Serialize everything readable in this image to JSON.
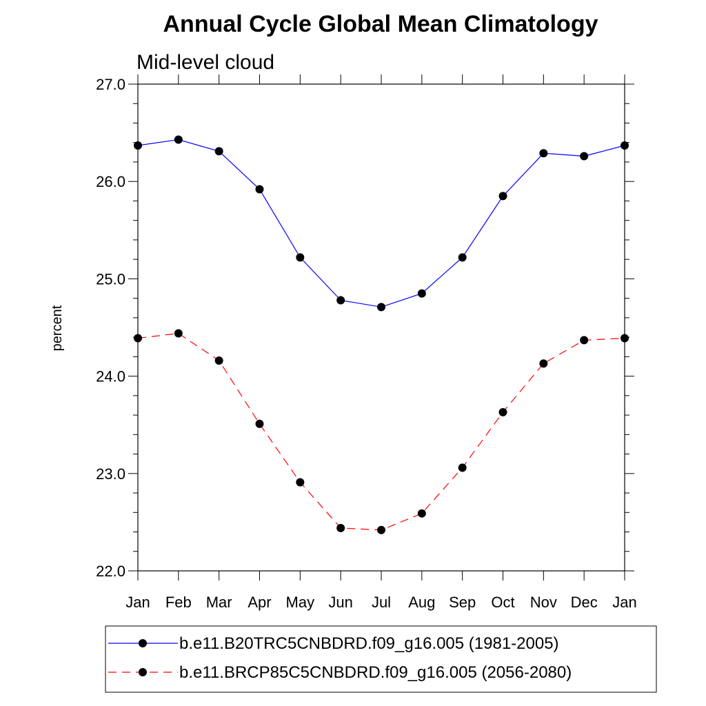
{
  "chart_data": {
    "type": "line",
    "title": "Annual Cycle Global Mean Climatology",
    "subtitle": "Mid-level cloud",
    "xlabel": "",
    "ylabel": "percent",
    "categories": [
      "Jan",
      "Feb",
      "Mar",
      "Apr",
      "May",
      "Jun",
      "Jul",
      "Aug",
      "Sep",
      "Oct",
      "Nov",
      "Dec",
      "Jan"
    ],
    "ylim": [
      22.0,
      27.0
    ],
    "yticks": [
      22.0,
      23.0,
      24.0,
      25.0,
      26.0,
      27.0
    ],
    "ytick_labels": [
      "22.0",
      "23.0",
      "24.0",
      "25.0",
      "26.0",
      "27.0"
    ],
    "grid": false,
    "legend_position": "bottom",
    "series": [
      {
        "name": "b.e11.B20TRC5CNBDRD.f09_g16.005 (1981-2005)",
        "color": "#0000ff",
        "dash": "solid",
        "marker": "filled-circle",
        "values": [
          26.37,
          26.43,
          26.31,
          25.92,
          25.22,
          24.78,
          24.71,
          24.85,
          25.22,
          25.85,
          26.29,
          26.26,
          26.37
        ]
      },
      {
        "name": "b.e11.BRCP85C5CNBDRD.f09_g16.005 (2056-2080)",
        "color": "#ff0000",
        "dash": "dashed",
        "marker": "filled-circle",
        "values": [
          24.39,
          24.44,
          24.16,
          23.51,
          22.91,
          22.44,
          22.42,
          22.59,
          23.06,
          23.63,
          24.13,
          24.37,
          24.39
        ]
      }
    ]
  }
}
